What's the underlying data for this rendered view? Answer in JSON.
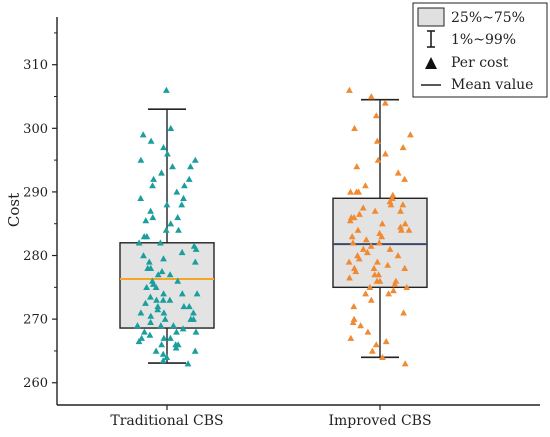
{
  "chart_data": {
    "type": "box-scatter",
    "ylabel": "Cost",
    "ylim": [
      256.5,
      317.5
    ],
    "yticks": [
      260,
      270,
      280,
      290,
      300,
      310
    ],
    "categories": [
      "Traditional CBS",
      "Improved CBS"
    ],
    "legend": {
      "placement": "top-right",
      "entries": [
        "25%~75%",
        "1%~99%",
        "Per cost",
        "Mean value"
      ]
    },
    "grid": false,
    "series": [
      {
        "category": "Traditional CBS",
        "box": {
          "q1": 268.6,
          "q3": 282.0,
          "mean": 276.3,
          "whisker_low": 263.1,
          "whisker_high": 303.0
        },
        "point_color": "#1a9e9e",
        "mean_color": "#f5a623",
        "points": [
          306.0,
          300.0,
          299.0,
          298.0,
          297.0,
          296.0,
          295.0,
          294.0,
          294.0,
          293.0,
          292.0,
          291.0,
          290.0,
          289.0,
          288.0,
          287.0,
          286.0,
          285.5,
          285.0,
          284.0,
          283.0,
          282.0,
          281.5,
          281.0,
          280.0,
          279.5,
          279.0,
          278.0,
          277.5,
          277.0,
          276.0,
          275.5,
          275.0,
          274.0,
          274.0,
          273.5,
          273.0,
          273.0,
          272.5,
          272.0,
          272.0,
          271.5,
          271.0,
          271.0,
          270.5,
          270.0,
          270.0,
          269.5,
          269.0,
          269.0,
          268.5,
          268.0,
          268.0,
          267.5,
          267.0,
          267.0,
          266.5,
          266.0,
          266.0,
          265.5,
          265.0,
          265.0,
          264.5,
          264.0,
          263.5,
          263.0,
          271.0,
          273.0,
          276.0,
          278.0,
          280.5,
          283.0,
          286.0,
          289.0,
          292.0,
          268.0,
          270.0,
          272.0,
          274.0,
          266.0,
          267.0,
          269.0,
          275.0,
          277.0,
          279.0,
          282.0,
          284.0,
          288.0,
          291.0,
          295.0
        ]
      },
      {
        "category": "Improved CBS",
        "box": {
          "q1": 275.0,
          "q3": 289.0,
          "mean": 281.8,
          "whisker_low": 264.0,
          "whisker_high": 304.5
        },
        "point_color": "#f08a33",
        "mean_color": "#3a4a6a",
        "points": [
          306.0,
          305.0,
          304.0,
          302.0,
          300.0,
          299.0,
          298.0,
          297.0,
          296.0,
          295.0,
          294.0,
          293.0,
          292.0,
          291.0,
          290.0,
          290.0,
          289.5,
          289.0,
          288.5,
          288.0,
          287.5,
          287.0,
          286.5,
          286.0,
          286.0,
          285.5,
          285.0,
          284.5,
          284.0,
          284.0,
          283.5,
          283.0,
          282.5,
          282.0,
          282.0,
          281.5,
          281.0,
          280.5,
          280.0,
          280.0,
          279.5,
          279.0,
          278.5,
          278.0,
          278.0,
          277.5,
          277.0,
          277.0,
          276.5,
          276.0,
          276.0,
          275.5,
          275.0,
          275.0,
          274.5,
          274.0,
          274.0,
          273.0,
          272.0,
          271.0,
          270.0,
          269.5,
          269.0,
          268.0,
          267.0,
          266.5,
          266.0,
          265.0,
          264.0,
          263.0,
          283.0,
          287.0,
          290.0,
          278.0,
          281.0,
          276.0,
          285.0,
          288.0,
          279.0,
          284.0
        ]
      }
    ]
  }
}
